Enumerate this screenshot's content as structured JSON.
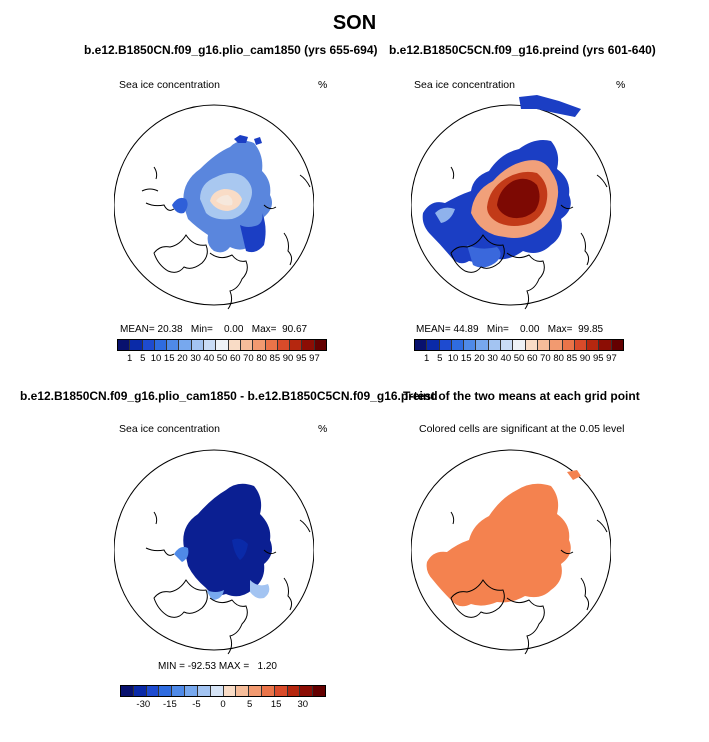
{
  "title": "SON",
  "panels": [
    {
      "title": "b.e12.B1850CN.f09_g16.plio_cam1850 (yrs 655-694)",
      "label": "Sea ice concentration",
      "units": "%",
      "mean_label": "MEAN=",
      "mean": "20.38",
      "min_label": "Min=",
      "min": "0.00",
      "max_label": "Max=",
      "max": "90.67"
    },
    {
      "title": "b.e12.B1850C5CN.f09_g16.preind (yrs 601-640)",
      "label": "Sea ice concentration",
      "units": "%",
      "mean_label": "MEAN=",
      "mean": "44.89",
      "min_label": "Min=",
      "min": "0.00",
      "max_label": "Max=",
      "max": "99.85"
    },
    {
      "title": "b.e12.B1850CN.f09_g16.plio_cam1850 - b.e12.B1850C5CN.f09_g16.preind",
      "label": "Sea ice concentration",
      "units": "%",
      "min_label": "MIN =",
      "min": "-92.53",
      "max_label": "MAX =",
      "max": "1.20"
    },
    {
      "title": "T-test of the two means at each grid point",
      "label": "Colored cells are significant at the 0.05 level"
    }
  ],
  "colorbar_abs": {
    "colors": [
      "#08116e",
      "#0a2aa8",
      "#1e4bd0",
      "#2f6ce0",
      "#4f8ae8",
      "#77a8ee",
      "#a3c4f2",
      "#c9dcf6",
      "#eef2f7",
      "#f9dcc6",
      "#f6bd9a",
      "#f29a70",
      "#ea7449",
      "#d94b2a",
      "#b5270f",
      "#8c0d04",
      "#640000"
    ],
    "ticks": [
      "1",
      "5",
      "10",
      "15",
      "20",
      "30",
      "40",
      "50",
      "60",
      "70",
      "80",
      "85",
      "90",
      "95",
      "97"
    ]
  },
  "colorbar_diff": {
    "colors": [
      "#08116e",
      "#0a2aa8",
      "#1e4bd0",
      "#2f6ce0",
      "#4f8ae8",
      "#77a8ee",
      "#a3c4f2",
      "#d6e4f6",
      "#f9dcc6",
      "#f6bd9a",
      "#f29a70",
      "#ea7449",
      "#d94b2a",
      "#b5270f",
      "#8c0d04",
      "#640000"
    ],
    "ticks": [
      "-30",
      "-15",
      "-5",
      "0",
      "5",
      "15",
      "30"
    ]
  },
  "colors": {
    "ttest_fill": "#f4824f",
    "coast": "#000000"
  }
}
